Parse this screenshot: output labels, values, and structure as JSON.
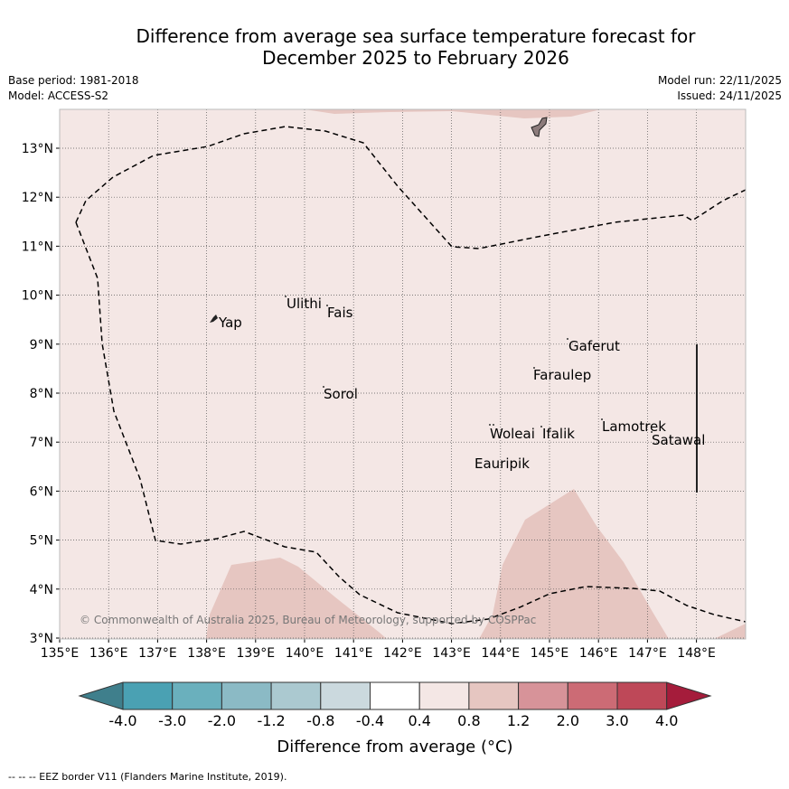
{
  "title": {
    "line1": "Difference from average sea surface temperature forecast for",
    "line2": "December 2025 to February 2026"
  },
  "meta": {
    "base_period": "Base period: 1981-2018",
    "model": "Model: ACCESS-S2",
    "model_run": "Model run: 22/11/2025",
    "issued": "Issued: 24/11/2025"
  },
  "map": {
    "lon_range": [
      135,
      149
    ],
    "lat_range": [
      3,
      13.8
    ],
    "lon_ticks": [
      "135°E",
      "136°E",
      "137°E",
      "138°E",
      "139°E",
      "140°E",
      "141°E",
      "142°E",
      "143°E",
      "144°E",
      "145°E",
      "146°E",
      "147°E",
      "148°E"
    ],
    "lat_ticks": [
      "3°N",
      "4°N",
      "5°N",
      "6°N",
      "7°N",
      "8°N",
      "9°N",
      "10°N",
      "11°N",
      "12°N",
      "13°N"
    ],
    "islands": [
      {
        "name": "Yap"
      },
      {
        "name": "Ulithi"
      },
      {
        "name": "Fais"
      },
      {
        "name": "Sorol"
      },
      {
        "name": "Gaferut"
      },
      {
        "name": "Faraulep"
      },
      {
        "name": "Woleai"
      },
      {
        "name": "Ifalik"
      },
      {
        "name": "Lamotrek"
      },
      {
        "name": "Satawal"
      },
      {
        "name": "Eauripik"
      }
    ],
    "copyright": "© Commonwealth of Australia 2025, Bureau of Meteorology, supported by COSPPac",
    "base_fill_color": "#f4e7e5",
    "warm_fill_color": "#e6c6c1"
  },
  "colorbar": {
    "labels": [
      "-4.0",
      "-3.0",
      "-2.0",
      "-1.2",
      "-0.8",
      "-0.4",
      "0.4",
      "0.8",
      "1.2",
      "2.0",
      "3.0",
      "4.0"
    ],
    "colors": [
      "#3f7f8c",
      "#4aa1b3",
      "#6ab0bd",
      "#8bbac5",
      "#abc9d0",
      "#cbd9de",
      "#ffffff",
      "#f4e7e5",
      "#e6c6c1",
      "#d79399",
      "#cc6b75",
      "#be4858",
      "#a51c3b"
    ],
    "label": "Difference from average (°C)"
  },
  "footer": "-- -- -- EEZ border V11 (Flanders Marine Institute, 2019)."
}
